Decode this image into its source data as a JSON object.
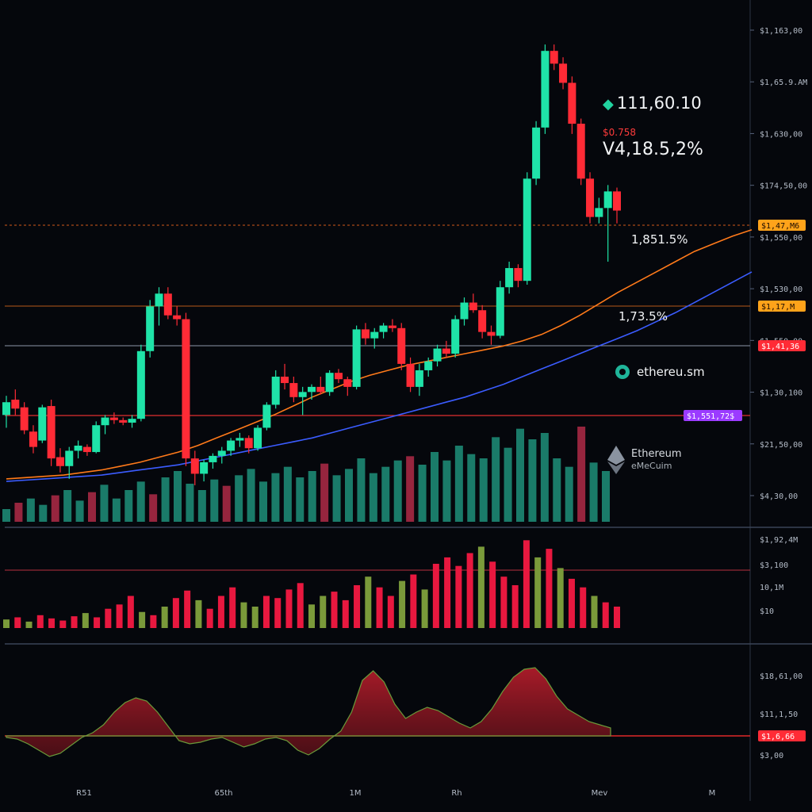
{
  "colors": {
    "background": "#05070c",
    "up": "#1fe3a8",
    "down": "#ff2b36",
    "ma_fast": "#ff7a1a",
    "ma_slow": "#3b5cff",
    "volume_up": "#1f8f7a",
    "volume_down": "#b02a48",
    "tag_orange": "#ffa31a",
    "tag_red": "#ff2b36",
    "tag_purple": "#9b3bff"
  },
  "price_panel": {
    "price": "111,60.10",
    "sub_value": "$0.758",
    "change": "V4,18.5,2%",
    "pct_a": "1,851.5%",
    "pct_b": "1,73.5%",
    "badge": "ethereu.sm",
    "logo_name": "Ethereum",
    "logo_sub": "eMeCuim",
    "axis_labels": [
      "$1,163,00",
      "$1,65.9.AM",
      "$1,630,00",
      "$174,50,00",
      "$1,550,00",
      "$1,530,00",
      "$1,550,00",
      "$1,30,100",
      "$21,50,00",
      "$4,30,00"
    ],
    "tags": [
      "$1,47,M6",
      "$1,17,M",
      "$1,41,36",
      "$1,551,72$"
    ]
  },
  "volume_panel": {
    "axis_labels": [
      "$1,92,4M",
      "$3,100",
      "10,1M",
      "$10"
    ]
  },
  "oscillator_panel": {
    "axis_labels": [
      "$18,61,00",
      "$11,1,50",
      "$3,00"
    ],
    "tag": "$1,6,66"
  },
  "x_axis": {
    "labels": [
      "R51",
      "65th",
      "1M",
      "Rh",
      "Mev",
      "M"
    ]
  },
  "chart_data": [
    {
      "type": "candlestick",
      "candles": [
        {
          "o": 470,
          "h": 485,
          "l": 460,
          "c": 480
        },
        {
          "o": 482,
          "h": 490,
          "l": 470,
          "c": 475
        },
        {
          "o": 476,
          "h": 480,
          "l": 455,
          "c": 458
        },
        {
          "o": 457,
          "h": 462,
          "l": 440,
          "c": 445
        },
        {
          "o": 450,
          "h": 478,
          "l": 448,
          "c": 476
        },
        {
          "o": 477,
          "h": 482,
          "l": 430,
          "c": 436
        },
        {
          "o": 437,
          "h": 444,
          "l": 425,
          "c": 430
        },
        {
          "o": 430,
          "h": 445,
          "l": 420,
          "c": 442
        },
        {
          "o": 442,
          "h": 450,
          "l": 436,
          "c": 446
        },
        {
          "o": 445,
          "h": 447,
          "l": 438,
          "c": 441
        },
        {
          "o": 441,
          "h": 465,
          "l": 440,
          "c": 462
        },
        {
          "o": 462,
          "h": 470,
          "l": 455,
          "c": 468
        },
        {
          "o": 468,
          "h": 472,
          "l": 463,
          "c": 466
        },
        {
          "o": 466,
          "h": 468,
          "l": 462,
          "c": 464
        },
        {
          "o": 464,
          "h": 470,
          "l": 460,
          "c": 467
        },
        {
          "o": 467,
          "h": 525,
          "l": 465,
          "c": 520
        },
        {
          "o": 520,
          "h": 560,
          "l": 515,
          "c": 555
        },
        {
          "o": 555,
          "h": 570,
          "l": 540,
          "c": 565
        },
        {
          "o": 565,
          "h": 570,
          "l": 545,
          "c": 548
        },
        {
          "o": 548,
          "h": 555,
          "l": 540,
          "c": 545
        },
        {
          "o": 545,
          "h": 550,
          "l": 430,
          "c": 436
        },
        {
          "o": 436,
          "h": 442,
          "l": 415,
          "c": 424
        },
        {
          "o": 424,
          "h": 435,
          "l": 418,
          "c": 433
        },
        {
          "o": 433,
          "h": 440,
          "l": 428,
          "c": 438
        },
        {
          "o": 438,
          "h": 445,
          "l": 432,
          "c": 442
        },
        {
          "o": 442,
          "h": 452,
          "l": 438,
          "c": 450
        },
        {
          "o": 450,
          "h": 456,
          "l": 445,
          "c": 452
        },
        {
          "o": 452,
          "h": 454,
          "l": 440,
          "c": 444
        },
        {
          "o": 444,
          "h": 462,
          "l": 442,
          "c": 460
        },
        {
          "o": 460,
          "h": 480,
          "l": 458,
          "c": 478
        },
        {
          "o": 478,
          "h": 505,
          "l": 475,
          "c": 500
        },
        {
          "o": 500,
          "h": 510,
          "l": 490,
          "c": 495
        },
        {
          "o": 495,
          "h": 500,
          "l": 480,
          "c": 484
        },
        {
          "o": 484,
          "h": 492,
          "l": 470,
          "c": 488
        },
        {
          "o": 488,
          "h": 494,
          "l": 482,
          "c": 492
        },
        {
          "o": 492,
          "h": 500,
          "l": 486,
          "c": 488
        },
        {
          "o": 488,
          "h": 505,
          "l": 485,
          "c": 503
        },
        {
          "o": 503,
          "h": 506,
          "l": 495,
          "c": 498
        },
        {
          "o": 498,
          "h": 500,
          "l": 485,
          "c": 492
        },
        {
          "o": 492,
          "h": 540,
          "l": 490,
          "c": 537
        },
        {
          "o": 537,
          "h": 542,
          "l": 525,
          "c": 530
        },
        {
          "o": 530,
          "h": 538,
          "l": 522,
          "c": 535
        },
        {
          "o": 535,
          "h": 542,
          "l": 530,
          "c": 540
        },
        {
          "o": 540,
          "h": 545,
          "l": 535,
          "c": 538
        },
        {
          "o": 538,
          "h": 542,
          "l": 505,
          "c": 510
        },
        {
          "o": 510,
          "h": 515,
          "l": 488,
          "c": 492
        },
        {
          "o": 492,
          "h": 510,
          "l": 485,
          "c": 505
        },
        {
          "o": 505,
          "h": 515,
          "l": 500,
          "c": 512
        },
        {
          "o": 512,
          "h": 525,
          "l": 508,
          "c": 522
        },
        {
          "o": 522,
          "h": 528,
          "l": 515,
          "c": 518
        },
        {
          "o": 518,
          "h": 548,
          "l": 515,
          "c": 545
        },
        {
          "o": 545,
          "h": 562,
          "l": 540,
          "c": 558
        },
        {
          "o": 558,
          "h": 565,
          "l": 550,
          "c": 552
        },
        {
          "o": 552,
          "h": 556,
          "l": 530,
          "c": 535
        },
        {
          "o": 535,
          "h": 540,
          "l": 525,
          "c": 532
        },
        {
          "o": 532,
          "h": 575,
          "l": 530,
          "c": 570
        },
        {
          "o": 570,
          "h": 590,
          "l": 565,
          "c": 585
        },
        {
          "o": 585,
          "h": 588,
          "l": 570,
          "c": 575
        },
        {
          "o": 575,
          "h": 660,
          "l": 572,
          "c": 655
        },
        {
          "o": 655,
          "h": 700,
          "l": 650,
          "c": 695
        },
        {
          "o": 695,
          "h": 760,
          "l": 690,
          "c": 755
        },
        {
          "o": 755,
          "h": 760,
          "l": 740,
          "c": 745
        },
        {
          "o": 745,
          "h": 750,
          "l": 725,
          "c": 730
        },
        {
          "o": 730,
          "h": 735,
          "l": 690,
          "c": 698
        },
        {
          "o": 698,
          "h": 702,
          "l": 650,
          "c": 655
        },
        {
          "o": 655,
          "h": 660,
          "l": 620,
          "c": 625
        },
        {
          "o": 625,
          "h": 640,
          "l": 620,
          "c": 632
        },
        {
          "o": 632,
          "h": 650,
          "l": 590,
          "c": 645
        },
        {
          "o": 645,
          "h": 648,
          "l": 620,
          "c": 630
        }
      ],
      "ma_fast": [
        420,
        421,
        422,
        423,
        425,
        427,
        430,
        433,
        437,
        441,
        446,
        452,
        458,
        464,
        470,
        477,
        484,
        490,
        496,
        501,
        505,
        509,
        512,
        515,
        518,
        521,
        524,
        528,
        533,
        540,
        548,
        557,
        566,
        574,
        582,
        590,
        598,
        604,
        610,
        615
      ],
      "ma_slow": [
        418,
        419,
        420,
        421,
        422,
        423,
        425,
        427,
        429,
        431,
        434,
        437,
        440,
        443,
        446,
        449,
        452,
        456,
        460,
        464,
        468,
        472,
        476,
        480,
        484,
        489,
        494,
        500,
        506,
        512,
        518,
        524,
        530,
        536,
        543,
        550,
        558,
        566,
        574,
        582
      ],
      "volume": [
        {
          "v": 12,
          "up": true
        },
        {
          "v": 18,
          "up": false
        },
        {
          "v": 22,
          "up": true
        },
        {
          "v": 16,
          "up": true
        },
        {
          "v": 25,
          "up": false
        },
        {
          "v": 30,
          "up": true
        },
        {
          "v": 20,
          "up": true
        },
        {
          "v": 28,
          "up": false
        },
        {
          "v": 35,
          "up": true
        },
        {
          "v": 22,
          "up": true
        },
        {
          "v": 30,
          "up": true
        },
        {
          "v": 38,
          "up": true
        },
        {
          "v": 26,
          "up": false
        },
        {
          "v": 42,
          "up": true
        },
        {
          "v": 48,
          "up": true
        },
        {
          "v": 36,
          "up": true
        },
        {
          "v": 30,
          "up": true
        },
        {
          "v": 40,
          "up": true
        },
        {
          "v": 34,
          "up": false
        },
        {
          "v": 44,
          "up": true
        },
        {
          "v": 50,
          "up": true
        },
        {
          "v": 38,
          "up": true
        },
        {
          "v": 46,
          "up": true
        },
        {
          "v": 52,
          "up": true
        },
        {
          "v": 42,
          "up": true
        },
        {
          "v": 48,
          "up": true
        },
        {
          "v": 55,
          "up": false
        },
        {
          "v": 44,
          "up": true
        },
        {
          "v": 50,
          "up": true
        },
        {
          "v": 60,
          "up": true
        },
        {
          "v": 46,
          "up": true
        },
        {
          "v": 52,
          "up": true
        },
        {
          "v": 58,
          "up": true
        },
        {
          "v": 62,
          "up": false
        },
        {
          "v": 54,
          "up": true
        },
        {
          "v": 66,
          "up": true
        },
        {
          "v": 58,
          "up": true
        },
        {
          "v": 72,
          "up": true
        },
        {
          "v": 64,
          "up": true
        },
        {
          "v": 60,
          "up": true
        },
        {
          "v": 80,
          "up": true
        },
        {
          "v": 70,
          "up": true
        },
        {
          "v": 88,
          "up": true
        },
        {
          "v": 78,
          "up": true
        },
        {
          "v": 84,
          "up": true
        },
        {
          "v": 60,
          "up": true
        },
        {
          "v": 52,
          "up": true
        },
        {
          "v": 90,
          "up": false
        },
        {
          "v": 56,
          "up": true
        },
        {
          "v": 48,
          "up": true
        }
      ]
    },
    {
      "type": "bar",
      "values": [
        -8,
        -10,
        -6,
        -12,
        -9,
        -7,
        -11,
        -14,
        -10,
        -18,
        -22,
        -30,
        -15,
        -12,
        -20,
        -28,
        -35,
        -26,
        -18,
        -30,
        -38,
        -24,
        -20,
        -30,
        -28,
        -36,
        -42,
        -22,
        -30,
        -34,
        -26,
        -40,
        -48,
        -38,
        -30,
        -44,
        -50,
        -36,
        -60,
        -66,
        -58,
        -70,
        -76,
        -62,
        -48,
        -40,
        -82,
        -66,
        -74,
        -56,
        -46,
        -38,
        -30,
        -24,
        -20
      ],
      "baseline_label": "$3,100"
    },
    {
      "type": "area",
      "values": [
        -2,
        -4,
        -10,
        -18,
        -26,
        -22,
        -12,
        -2,
        4,
        14,
        30,
        42,
        48,
        44,
        30,
        12,
        -6,
        -10,
        -8,
        -4,
        -2,
        -8,
        -14,
        -10,
        -4,
        -2,
        -6,
        -18,
        -24,
        -16,
        -4,
        6,
        30,
        70,
        82,
        68,
        40,
        22,
        30,
        36,
        32,
        24,
        16,
        10,
        18,
        34,
        56,
        74,
        84,
        86,
        72,
        50,
        34,
        26,
        18,
        14,
        10
      ]
    }
  ]
}
